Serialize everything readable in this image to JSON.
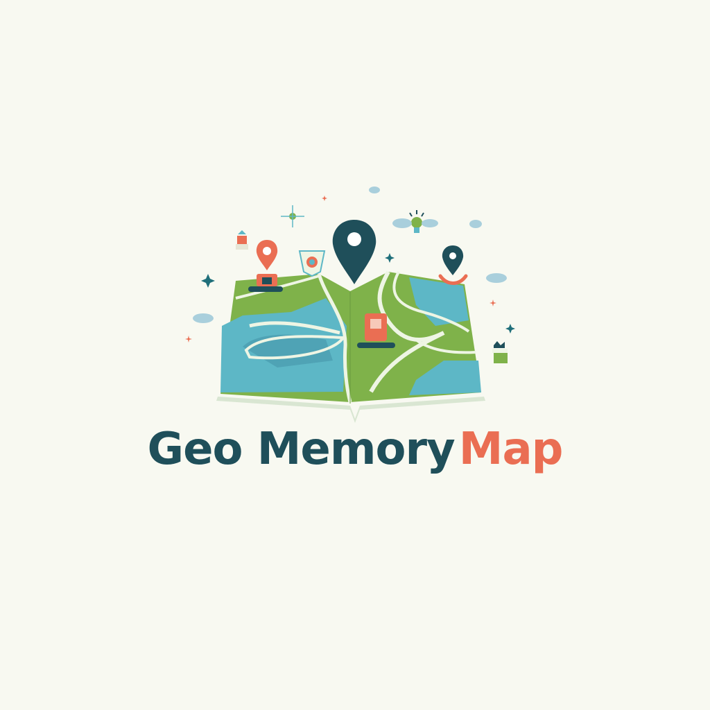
{
  "logo": {
    "title_dark": "Geo Memory",
    "title_accent": "Map",
    "icons": [
      "folded-map-icon",
      "location-pin-icon",
      "cloud-icon",
      "sparkle-icon",
      "lightbulb-icon",
      "badge-icon",
      "lantern-icon",
      "planter-icon"
    ]
  },
  "colors": {
    "background": "#f8f9f1",
    "land_green": "#7fb24a",
    "water_blue": "#5db7c6",
    "dark_teal": "#1f4f5a",
    "coral": "#ea6e53",
    "cloud_blue": "#a9cfdc"
  }
}
